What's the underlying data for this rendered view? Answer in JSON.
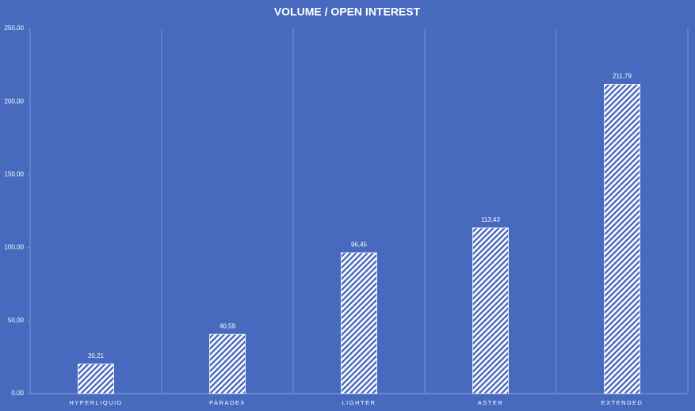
{
  "chart_data": {
    "type": "bar",
    "title": "VOLUME / OPEN INTEREST",
    "categories": [
      "HYPERLIQUID",
      "PARADEX",
      "LIGHTER",
      "ASTER",
      "EXTENDED"
    ],
    "values": [
      20.21,
      40.59,
      96.45,
      113.43,
      211.79
    ],
    "value_labels": [
      "20,21",
      "40,59",
      "96,45",
      "113,43",
      "211,79"
    ],
    "color": "#ffffff",
    "ylim": [
      0,
      250
    ],
    "yticks": [
      {
        "value": 0,
        "label": "0,00"
      },
      {
        "value": 50,
        "label": "50,00"
      },
      {
        "value": 100,
        "label": "100,00"
      },
      {
        "value": 150,
        "label": "150,00"
      },
      {
        "value": 200,
        "label": "200,00"
      },
      {
        "value": 250,
        "label": "250,00"
      }
    ]
  }
}
